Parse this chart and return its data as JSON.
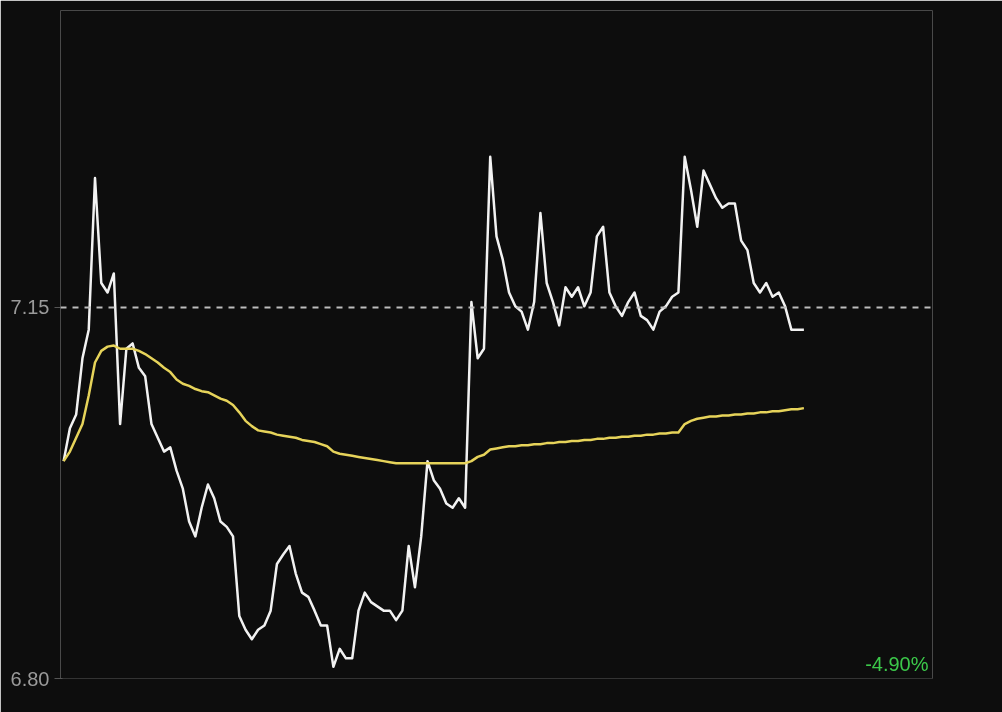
{
  "chart_data": {
    "type": "line",
    "categories": [
      null,
      null,
      null,
      null,
      null,
      null,
      null,
      null,
      null,
      null,
      null,
      null,
      null,
      null,
      null,
      null,
      null,
      null,
      null,
      null,
      null,
      null,
      null,
      null,
      null,
      null,
      null,
      null,
      null,
      null,
      null,
      null,
      null,
      null,
      null,
      null,
      null,
      null,
      null,
      null,
      null,
      null,
      null,
      null,
      null,
      null,
      null,
      null,
      null,
      null,
      null,
      null,
      null,
      null,
      null,
      null,
      null,
      null,
      null,
      null,
      null,
      null,
      null,
      null,
      null,
      null,
      null,
      null,
      null,
      null,
      null,
      null,
      null,
      null,
      null,
      null,
      null,
      null,
      null,
      null,
      null,
      null,
      null,
      null,
      null,
      null,
      null,
      null,
      null,
      null,
      null,
      null,
      null,
      null,
      null,
      null,
      null,
      null,
      null,
      null,
      null,
      null,
      null,
      null,
      null,
      null,
      null,
      null,
      null,
      null,
      null,
      null,
      null,
      null,
      null,
      null,
      null,
      null,
      null,
      null,
      null,
      null,
      null,
      null,
      null,
      null,
      null,
      null,
      null,
      null,
      null,
      null,
      null,
      null,
      null,
      null,
      null,
      null,
      null
    ],
    "series": [
      {
        "color": "#f2f2f2",
        "values": [
          7.005,
          7.036,
          7.049,
          7.102,
          7.129,
          7.272,
          7.173,
          7.164,
          7.182,
          7.04,
          7.111,
          7.116,
          7.093,
          7.085,
          7.04,
          7.027,
          7.014,
          7.018,
          6.996,
          6.979,
          6.948,
          6.934,
          6.961,
          6.983,
          6.97,
          6.948,
          6.943,
          6.934,
          6.859,
          6.846,
          6.837,
          6.846,
          6.85,
          6.864,
          6.908,
          6.917,
          6.925,
          6.899,
          6.881,
          6.877,
          6.864,
          6.85,
          6.85,
          6.811,
          6.828,
          6.819,
          6.819,
          6.864,
          6.881,
          6.872,
          6.868,
          6.864,
          6.864,
          6.855,
          6.864,
          6.925,
          6.886,
          6.934,
          7.005,
          6.987,
          6.979,
          6.965,
          6.961,
          6.97,
          6.961,
          7.155,
          7.102,
          7.111,
          7.292,
          7.217,
          7.195,
          7.164,
          7.151,
          7.146,
          7.129,
          7.155,
          7.239,
          7.173,
          7.155,
          7.133,
          7.169,
          7.16,
          7.169,
          7.151,
          7.164,
          7.217,
          7.226,
          7.164,
          7.151,
          7.142,
          7.155,
          7.164,
          7.142,
          7.138,
          7.129,
          7.146,
          7.151,
          7.16,
          7.164,
          7.292,
          7.261,
          7.226,
          7.279,
          7.266,
          7.253,
          7.244,
          7.248,
          7.248,
          7.213,
          7.204,
          7.173,
          7.164,
          7.173,
          7.16,
          7.164,
          7.151,
          7.129,
          7.129,
          7.129,
          null,
          null,
          null,
          null,
          null,
          null,
          null,
          null,
          null,
          null,
          null,
          null,
          null,
          null,
          null,
          null,
          null,
          null,
          null,
          null
        ]
      },
      {
        "color": "#e6d35a",
        "values": [
          7.005,
          7.014,
          7.027,
          7.04,
          7.067,
          7.098,
          7.109,
          7.113,
          7.114,
          7.111,
          7.111,
          7.111,
          7.109,
          7.106,
          7.102,
          7.098,
          7.093,
          7.089,
          7.082,
          7.078,
          7.076,
          7.073,
          7.071,
          7.07,
          7.067,
          7.064,
          7.062,
          7.058,
          7.051,
          7.043,
          7.038,
          7.034,
          7.033,
          7.032,
          7.03,
          7.029,
          7.028,
          7.027,
          7.025,
          7.024,
          7.023,
          7.021,
          7.019,
          7.014,
          7.012,
          7.011,
          7.01,
          7.009,
          7.008,
          7.007,
          7.006,
          7.005,
          7.004,
          7.003,
          7.003,
          7.003,
          7.003,
          7.003,
          7.003,
          7.003,
          7.003,
          7.003,
          7.003,
          7.003,
          7.003,
          7.005,
          7.009,
          7.011,
          7.016,
          7.017,
          7.018,
          7.019,
          7.019,
          7.02,
          7.02,
          7.021,
          7.021,
          7.022,
          7.022,
          7.023,
          7.023,
          7.024,
          7.024,
          7.025,
          7.025,
          7.026,
          7.026,
          7.027,
          7.027,
          7.028,
          7.028,
          7.029,
          7.029,
          7.03,
          7.03,
          7.031,
          7.031,
          7.032,
          7.032,
          7.04,
          7.043,
          7.045,
          7.046,
          7.047,
          7.047,
          7.048,
          7.048,
          7.049,
          7.049,
          7.05,
          7.05,
          7.051,
          7.051,
          7.052,
          7.052,
          7.053,
          7.054,
          7.054,
          7.055,
          null,
          null,
          null,
          null,
          null,
          null,
          null,
          null,
          null,
          null,
          null,
          null,
          null,
          null,
          null,
          null,
          null,
          null,
          null,
          null
        ]
      }
    ],
    "ylim": [
      6.8,
      7.43
    ],
    "yticks": [
      {
        "value": 6.8,
        "label": "6.80"
      },
      {
        "value": 7.15,
        "label": "7.15"
      }
    ],
    "ref_lines": [
      {
        "axis": "y",
        "value": 7.15,
        "color": "#bdbdbd",
        "line_style": "dashed"
      }
    ],
    "annotations": [
      "-4.90%"
    ],
    "line_style": "solid",
    "marker": "none"
  }
}
